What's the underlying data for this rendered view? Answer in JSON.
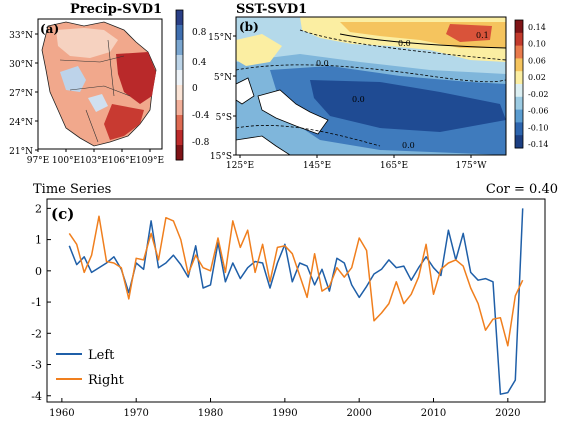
{
  "panels": {
    "a": {
      "label": "(a)",
      "title": "Precip-SVD1",
      "lat_ticks": [
        "33°N",
        "30°N",
        "27°N",
        "24°N",
        "21°N"
      ],
      "lon_ticks": [
        "97°E",
        "100°E",
        "103°E",
        "106°E",
        "109°E"
      ],
      "colorbar": [
        "0.8",
        "0.4",
        "0",
        "-0.4",
        "-0.8"
      ],
      "colorbar_colors": [
        "#2a3f86",
        "#3f6fb0",
        "#7aa6d0",
        "#bcd4e8",
        "#eef3f8",
        "#fbe4d6",
        "#f3b09a",
        "#de6a52",
        "#bd2b2b",
        "#7f1417"
      ]
    },
    "b": {
      "label": "(b)",
      "title": "SST-SVD1",
      "lat_ticks": [
        "15°N",
        "5°N",
        "5°S",
        "15°S"
      ],
      "lon_ticks": [
        "125°E",
        "145°E",
        "165°E",
        "175°W"
      ],
      "contour_labels": [
        "0.0",
        "0.1",
        "0.0",
        "0.0",
        "0.0"
      ],
      "colorbar": [
        "0.14",
        "0.10",
        "0.06",
        "0.02",
        "-0.02",
        "-0.06",
        "-0.10",
        "-0.14"
      ],
      "colorbar_colors": [
        "#7f1417",
        "#c23a2c",
        "#e87a4c",
        "#f5c45e",
        "#fbeea2",
        "#dceff2",
        "#9ccbe3",
        "#5a9cd0",
        "#2d65ae",
        "#1c3f82"
      ]
    }
  },
  "chart_data": {
    "type": "line",
    "label": "(c)",
    "title": "Time Series",
    "annotation": "Cor = 0.40",
    "xlim": [
      1958,
      2025
    ],
    "ylim": [
      -4.2,
      2.3
    ],
    "xticks": [
      1960,
      1970,
      1980,
      1990,
      2000,
      2010,
      2020
    ],
    "yticks": [
      2,
      1,
      0,
      -1,
      -2,
      -3,
      -4
    ],
    "legend_position": "bottom-left",
    "x": [
      1961,
      1962,
      1963,
      1964,
      1965,
      1966,
      1967,
      1968,
      1969,
      1970,
      1971,
      1972,
      1973,
      1974,
      1975,
      1976,
      1977,
      1978,
      1979,
      1980,
      1981,
      1982,
      1983,
      1984,
      1985,
      1986,
      1987,
      1988,
      1989,
      1990,
      1991,
      1992,
      1993,
      1994,
      1995,
      1996,
      1997,
      1998,
      1999,
      2000,
      2001,
      2002,
      2003,
      2004,
      2005,
      2006,
      2007,
      2008,
      2009,
      2010,
      2011,
      2012,
      2013,
      2014,
      2015,
      2016,
      2017,
      2018,
      2019,
      2020,
      2021,
      2022
    ],
    "series": [
      {
        "name": "Left",
        "color": "#1f5fa8",
        "values": [
          0.8,
          0.2,
          0.45,
          -0.05,
          0.1,
          0.25,
          0.45,
          0.05,
          -0.7,
          0.25,
          0.05,
          1.6,
          0.1,
          0.25,
          0.5,
          0.2,
          -0.2,
          0.8,
          -0.55,
          -0.45,
          0.9,
          -0.35,
          0.25,
          -0.25,
          0.1,
          0.3,
          0.25,
          -0.55,
          0.25,
          0.85,
          -0.35,
          0.25,
          0.15,
          -0.45,
          0.05,
          -0.65,
          0.4,
          0.25,
          -0.45,
          -0.85,
          -0.5,
          -0.1,
          0.05,
          0.35,
          0.1,
          0.15,
          -0.3,
          0.1,
          0.45,
          0.1,
          -0.15,
          1.3,
          0.35,
          1.2,
          -0.05,
          -0.3,
          -0.25,
          -0.35,
          -3.95,
          -3.9,
          -3.5,
          2.0
        ]
      },
      {
        "name": "Right",
        "color": "#f07f1e",
        "values": [
          1.2,
          0.85,
          -0.05,
          0.5,
          1.75,
          0.3,
          0.25,
          0.1,
          -0.9,
          0.4,
          0.35,
          1.2,
          0.35,
          1.7,
          1.6,
          1.0,
          -0.1,
          0.5,
          0.1,
          0.0,
          1.05,
          -0.05,
          1.6,
          0.75,
          1.3,
          -0.05,
          0.85,
          -0.35,
          0.75,
          0.8,
          0.55,
          -0.15,
          -0.85,
          0.55,
          -0.65,
          -0.5,
          0.1,
          -0.2,
          0.1,
          1.05,
          0.65,
          -1.6,
          -1.35,
          -1.05,
          -0.35,
          -1.05,
          -0.75,
          -0.2,
          0.85,
          -0.75,
          0.05,
          0.25,
          0.35,
          0.15,
          -0.55,
          -1.05,
          -1.9,
          -1.55,
          -1.5,
          -2.4,
          -0.8,
          -0.3
        ]
      }
    ]
  }
}
